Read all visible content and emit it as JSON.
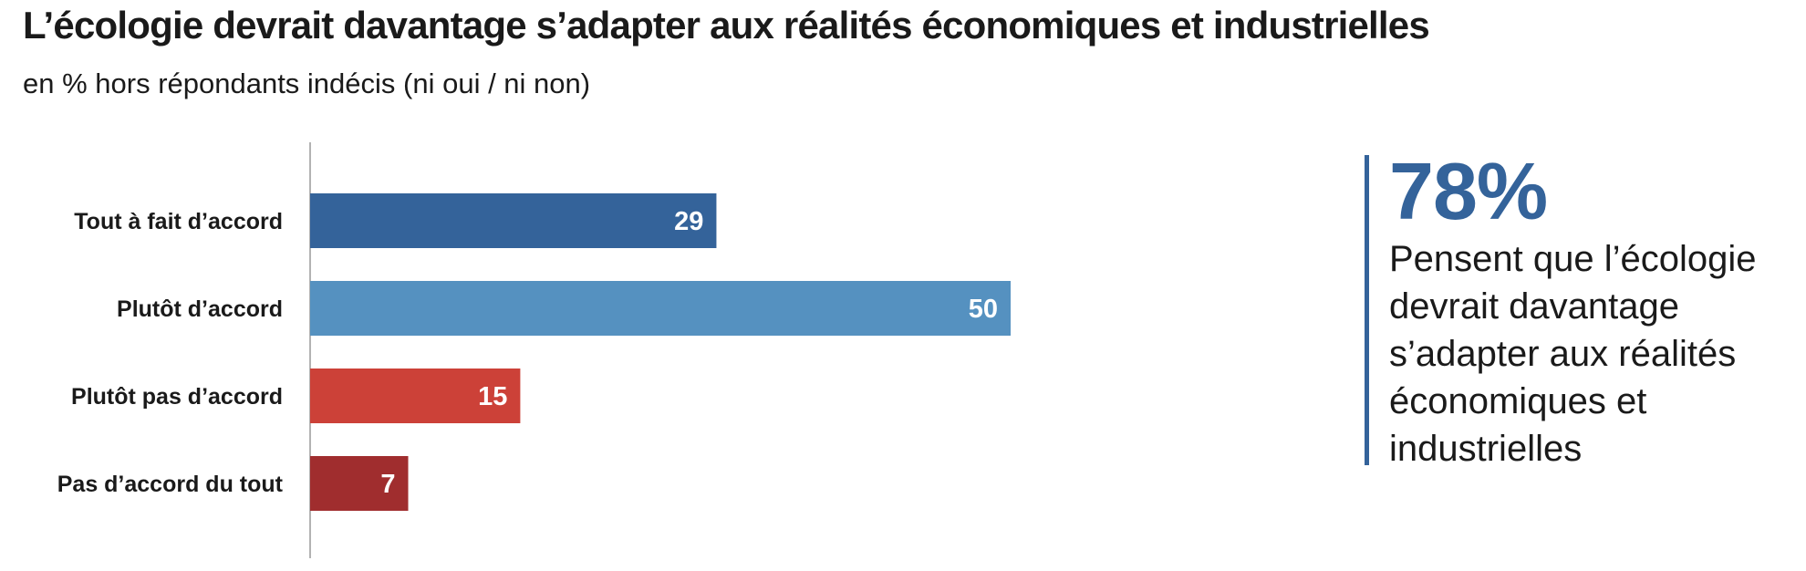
{
  "title": "L’écologie devrait davantage s’adapter aux réalités économiques et industrielles",
  "subtitle": "en % hors répondants indécis (ni oui / ni non)",
  "callout": {
    "value": "78%",
    "text": "Pensent que l’écologie devrait davantage s’adapter aux réalités économiques et industrielles"
  },
  "chart_data": {
    "type": "bar",
    "orientation": "horizontal",
    "categories": [
      "Tout à fait d’accord",
      "Plutôt d’accord",
      "Plutôt pas d’accord",
      "Pas d’accord du tout"
    ],
    "values": [
      29,
      50,
      15,
      7
    ],
    "colors": [
      "#34639a",
      "#5591c0",
      "#cc4138",
      "#a02d2e"
    ],
    "xlim": [
      0,
      50
    ],
    "grid": false,
    "legend": "none"
  }
}
